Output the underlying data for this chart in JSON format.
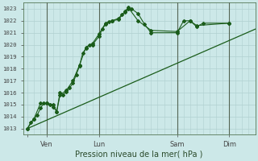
{
  "background_color": "#cce8e8",
  "grid_color": "#b0d0d0",
  "line_color": "#1a5c1a",
  "title": "Pression niveau de la mer( hPa )",
  "ylabel_vals": [
    1013,
    1014,
    1015,
    1016,
    1017,
    1018,
    1019,
    1020,
    1021,
    1022,
    1023
  ],
  "ylim": [
    1012.5,
    1023.5
  ],
  "x_ticks": [
    0,
    18,
    66,
    138,
    186
  ],
  "x_tick_labels": [
    "",
    "Ven",
    "Lun",
    "Sam",
    "Dim"
  ],
  "xlim": [
    -4,
    210
  ],
  "series1": [
    [
      0,
      1013.0
    ],
    [
      3,
      1013.5
    ],
    [
      6,
      1013.8
    ],
    [
      9,
      1014.1
    ],
    [
      12,
      1014.7
    ],
    [
      15,
      1015.1
    ],
    [
      18,
      1015.1
    ],
    [
      21,
      1015.0
    ],
    [
      24,
      1014.8
    ],
    [
      27,
      1014.4
    ],
    [
      30,
      1016.0
    ],
    [
      33,
      1015.8
    ],
    [
      36,
      1016.1
    ],
    [
      39,
      1016.4
    ],
    [
      42,
      1016.8
    ],
    [
      45,
      1017.5
    ],
    [
      48,
      1018.2
    ],
    [
      51,
      1019.3
    ],
    [
      54,
      1019.7
    ],
    [
      57,
      1020.0
    ],
    [
      60,
      1020.0
    ],
    [
      66,
      1020.7
    ],
    [
      69,
      1021.3
    ],
    [
      72,
      1021.7
    ],
    [
      75,
      1021.9
    ],
    [
      78,
      1022.0
    ],
    [
      84,
      1022.2
    ],
    [
      87,
      1022.5
    ],
    [
      90,
      1022.7
    ],
    [
      93,
      1023.0
    ],
    [
      96,
      1023.0
    ],
    [
      102,
      1022.6
    ],
    [
      108,
      1021.7
    ],
    [
      114,
      1021.0
    ],
    [
      138,
      1021.0
    ],
    [
      144,
      1022.0
    ],
    [
      150,
      1022.0
    ],
    [
      156,
      1021.5
    ],
    [
      162,
      1021.8
    ],
    [
      186,
      1021.8
    ]
  ],
  "series2": [
    [
      0,
      1013.0
    ],
    [
      6,
      1013.8
    ],
    [
      12,
      1015.1
    ],
    [
      18,
      1015.1
    ],
    [
      24,
      1015.0
    ],
    [
      27,
      1014.4
    ],
    [
      30,
      1015.8
    ],
    [
      36,
      1016.2
    ],
    [
      42,
      1017.0
    ],
    [
      48,
      1018.3
    ],
    [
      54,
      1019.8
    ],
    [
      60,
      1020.1
    ],
    [
      66,
      1020.9
    ],
    [
      72,
      1021.8
    ],
    [
      78,
      1022.0
    ],
    [
      84,
      1022.1
    ],
    [
      90,
      1022.8
    ],
    [
      93,
      1023.1
    ],
    [
      102,
      1022.0
    ],
    [
      114,
      1021.2
    ],
    [
      138,
      1021.1
    ],
    [
      150,
      1022.0
    ],
    [
      156,
      1021.6
    ],
    [
      186,
      1021.8
    ]
  ],
  "series3_linear": [
    [
      0,
      1013.0
    ],
    [
      210,
      1021.3
    ]
  ]
}
